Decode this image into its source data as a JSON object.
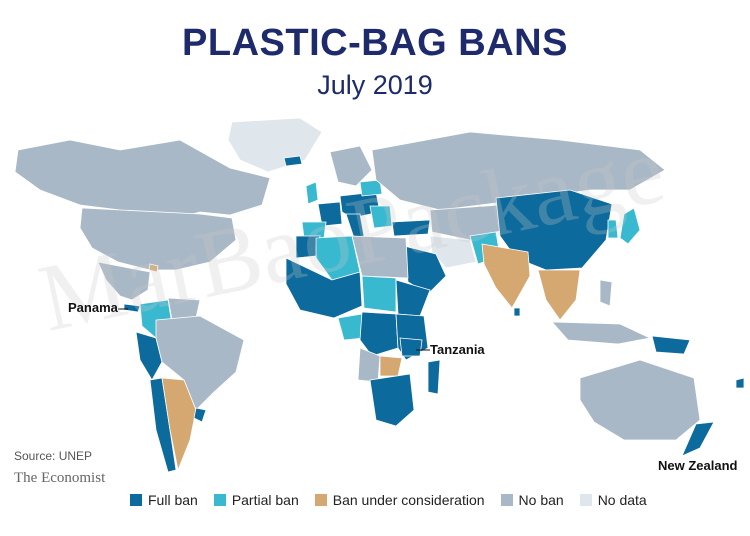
{
  "title": "PLASTIC-BAG BANS",
  "subtitle": "July 2019",
  "colors": {
    "full": "#0c6a9c",
    "partial": "#38b9cf",
    "consideration": "#d5a871",
    "no_ban": "#a9b8c6",
    "no_data": "#dfe6ec",
    "ocean": "#ffffff"
  },
  "legend": [
    {
      "key": "full",
      "label": "Full ban"
    },
    {
      "key": "partial",
      "label": "Partial ban"
    },
    {
      "key": "consideration",
      "label": "Ban under consideration"
    },
    {
      "key": "no_ban",
      "label": "No ban"
    },
    {
      "key": "no_data",
      "label": "No data"
    }
  ],
  "callouts": {
    "panama": "Panama",
    "tanzania": "Tanzania",
    "new_zealand": "New Zealand"
  },
  "source": "Source: UNEP",
  "brand": "The Economist",
  "watermark": "MarBaoPackage"
}
